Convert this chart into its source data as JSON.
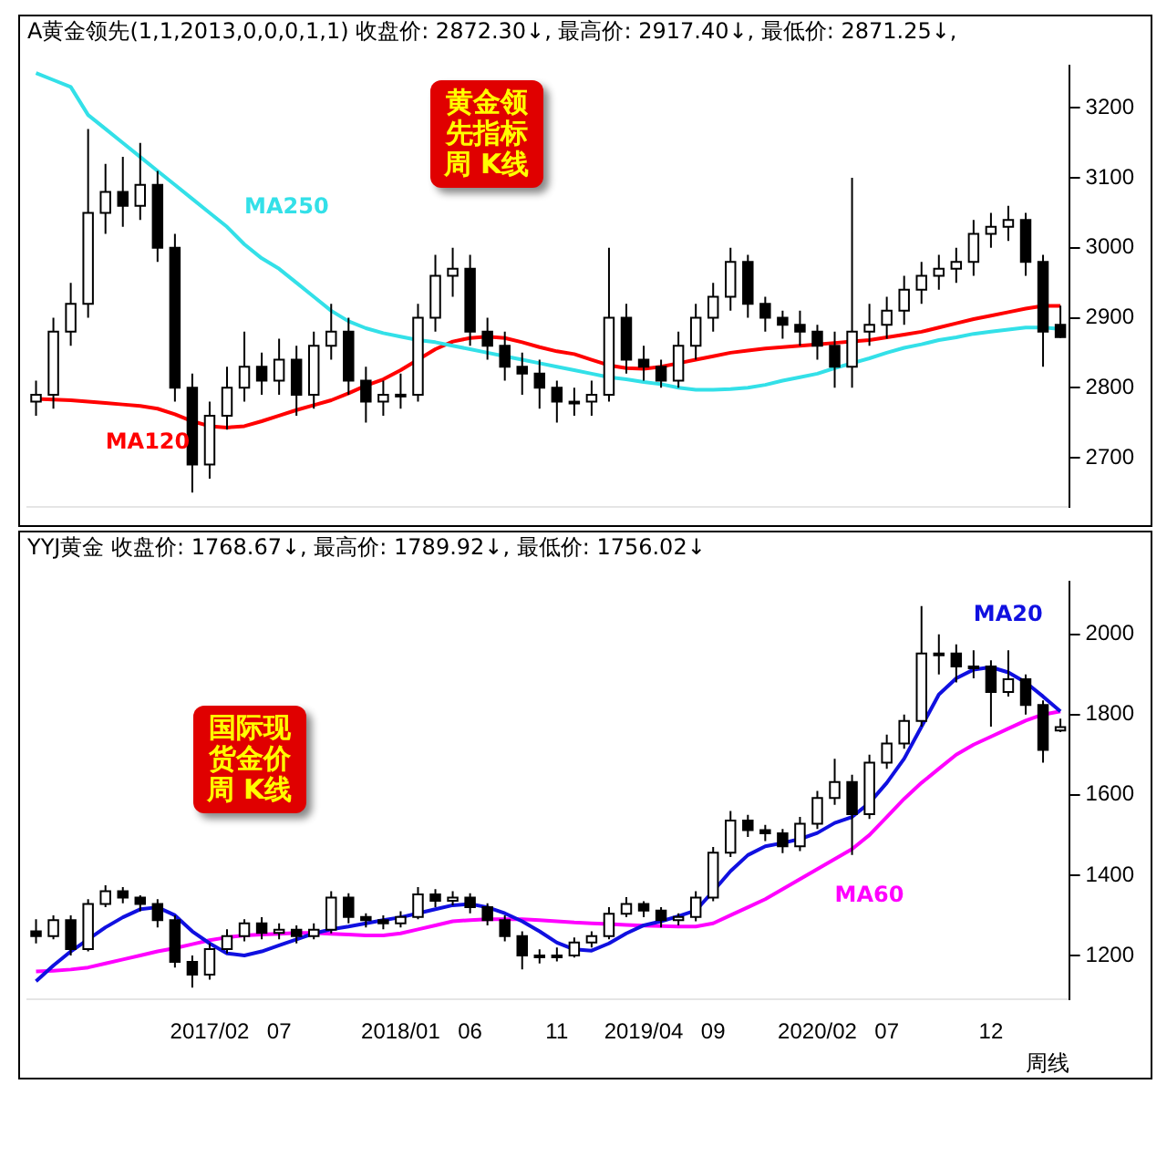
{
  "chart_data": [
    {
      "type": "candlestick",
      "title": "A黄金领先(1,1,2013,0,0,0,1,1) 收盘价: 2872.30↓, 最高价: 2917.40↓, 最低价: 2871.25↓,",
      "annotations": [
        "黄金领先指标周 K线"
      ],
      "categories": [
        null,
        null,
        null,
        null,
        null,
        null,
        null,
        null,
        null,
        null,
        "2017/02",
        null,
        null,
        null,
        "07",
        null,
        null,
        null,
        null,
        null,
        null,
        "2018/01",
        null,
        null,
        null,
        "06",
        null,
        null,
        null,
        null,
        "11",
        null,
        null,
        null,
        null,
        "2019/04",
        null,
        null,
        null,
        "09",
        null,
        null,
        null,
        null,
        null,
        "2020/02",
        null,
        null,
        null,
        "07",
        null,
        null,
        null,
        null,
        null,
        "12",
        null,
        null,
        null,
        null
      ],
      "ohlc": [
        [
          2780,
          2810,
          2760,
          2790
        ],
        [
          2790,
          2900,
          2770,
          2880
        ],
        [
          2880,
          2950,
          2860,
          2920
        ],
        [
          2920,
          3170,
          2900,
          3050
        ],
        [
          3050,
          3120,
          3020,
          3080
        ],
        [
          3080,
          3130,
          3030,
          3060
        ],
        [
          3060,
          3150,
          3040,
          3090
        ],
        [
          3090,
          3110,
          2980,
          3000
        ],
        [
          3000,
          3020,
          2780,
          2800
        ],
        [
          2800,
          2820,
          2650,
          2690
        ],
        [
          2690,
          2780,
          2670,
          2760
        ],
        [
          2760,
          2830,
          2740,
          2800
        ],
        [
          2800,
          2880,
          2780,
          2830
        ],
        [
          2830,
          2850,
          2790,
          2810
        ],
        [
          2810,
          2870,
          2790,
          2840
        ],
        [
          2840,
          2860,
          2760,
          2790
        ],
        [
          2790,
          2880,
          2770,
          2860
        ],
        [
          2860,
          2920,
          2840,
          2880
        ],
        [
          2880,
          2900,
          2790,
          2810
        ],
        [
          2810,
          2830,
          2750,
          2780
        ],
        [
          2780,
          2810,
          2760,
          2790
        ],
        [
          2790,
          2820,
          2770,
          2790
        ],
        [
          2790,
          2920,
          2780,
          2900
        ],
        [
          2900,
          2990,
          2880,
          2960
        ],
        [
          2960,
          3000,
          2930,
          2970
        ],
        [
          2970,
          2990,
          2860,
          2880
        ],
        [
          2880,
          2900,
          2840,
          2860
        ],
        [
          2860,
          2880,
          2810,
          2830
        ],
        [
          2830,
          2850,
          2790,
          2820
        ],
        [
          2820,
          2840,
          2770,
          2800
        ],
        [
          2800,
          2810,
          2750,
          2780
        ],
        [
          2780,
          2800,
          2760,
          2780
        ],
        [
          2780,
          2810,
          2760,
          2790
        ],
        [
          2790,
          3000,
          2780,
          2900
        ],
        [
          2900,
          2920,
          2820,
          2840
        ],
        [
          2840,
          2860,
          2810,
          2830
        ],
        [
          2830,
          2840,
          2800,
          2810
        ],
        [
          2810,
          2880,
          2800,
          2860
        ],
        [
          2860,
          2920,
          2840,
          2900
        ],
        [
          2900,
          2950,
          2880,
          2930
        ],
        [
          2930,
          3000,
          2910,
          2980
        ],
        [
          2980,
          2990,
          2900,
          2920
        ],
        [
          2920,
          2930,
          2880,
          2900
        ],
        [
          2900,
          2910,
          2870,
          2890
        ],
        [
          2890,
          2910,
          2860,
          2880
        ],
        [
          2880,
          2890,
          2840,
          2860
        ],
        [
          2860,
          2880,
          2800,
          2830
        ],
        [
          2830,
          3100,
          2800,
          2880
        ],
        [
          2880,
          2920,
          2860,
          2890
        ],
        [
          2890,
          2930,
          2870,
          2910
        ],
        [
          2910,
          2960,
          2890,
          2940
        ],
        [
          2940,
          2980,
          2920,
          2960
        ],
        [
          2960,
          2990,
          2940,
          2970
        ],
        [
          2970,
          3000,
          2950,
          2980
        ],
        [
          2980,
          3040,
          2960,
          3020
        ],
        [
          3020,
          3050,
          3000,
          3030
        ],
        [
          3030,
          3060,
          3010,
          3040
        ],
        [
          3040,
          3050,
          2960,
          2980
        ],
        [
          2980,
          2990,
          2830,
          2880
        ],
        [
          2890,
          2917.4,
          2871.25,
          2872.3
        ]
      ],
      "series": [
        {
          "name": "MA250",
          "type": "line",
          "color": "#33e0e8",
          "values": [
            3250,
            3240,
            3230,
            3190,
            3170,
            3150,
            3130,
            3110,
            3090,
            3070,
            3050,
            3030,
            3005,
            2985,
            2970,
            2950,
            2930,
            2910,
            2895,
            2885,
            2878,
            2873,
            2868,
            2865,
            2860,
            2855,
            2850,
            2845,
            2840,
            2835,
            2830,
            2825,
            2820,
            2815,
            2812,
            2808,
            2805,
            2800,
            2797,
            2797,
            2798,
            2800,
            2804,
            2810,
            2815,
            2820,
            2828,
            2835,
            2842,
            2850,
            2857,
            2862,
            2868,
            2872,
            2877,
            2880,
            2883,
            2886,
            2886,
            2884
          ]
        },
        {
          "name": "MA120",
          "type": "line",
          "color": "#ff0000",
          "values": [
            2784,
            2783,
            2782,
            2780,
            2778,
            2776,
            2774,
            2770,
            2762,
            2752,
            2745,
            2743,
            2745,
            2752,
            2760,
            2768,
            2775,
            2782,
            2792,
            2803,
            2812,
            2825,
            2840,
            2855,
            2866,
            2871,
            2873,
            2871,
            2865,
            2858,
            2852,
            2848,
            2840,
            2832,
            2828,
            2827,
            2830,
            2835,
            2840,
            2845,
            2850,
            2853,
            2856,
            2858,
            2860,
            2862,
            2864,
            2866,
            2868,
            2872,
            2876,
            2880,
            2886,
            2892,
            2898,
            2903,
            2908,
            2913,
            2917,
            2917
          ]
        }
      ],
      "ylim": [
        2630,
        3260
      ],
      "yticks": [
        2700,
        2800,
        2900,
        3000,
        3100,
        3200
      ],
      "tick_labels": "y",
      "legend": false,
      "grid": false
    },
    {
      "type": "candlestick",
      "title": "YYJ黄金 收盘价: 1768.67↓, 最高价: 1789.92↓, 最低价: 1756.02↓",
      "annotations": [
        "国际现货金价周 K线"
      ],
      "xlabel": "周线",
      "categories": [
        null,
        null,
        null,
        null,
        null,
        null,
        null,
        null,
        null,
        null,
        "2017/02",
        null,
        null,
        null,
        "07",
        null,
        null,
        null,
        null,
        null,
        null,
        "2018/01",
        null,
        null,
        null,
        "06",
        null,
        null,
        null,
        null,
        "11",
        null,
        null,
        null,
        null,
        "2019/04",
        null,
        null,
        null,
        "09",
        null,
        null,
        null,
        null,
        null,
        "2020/02",
        null,
        null,
        null,
        "07",
        null,
        null,
        null,
        null,
        null,
        "12",
        null,
        null,
        null,
        null
      ],
      "ohlc": [
        [
          1260,
          1290,
          1230,
          1248
        ],
        [
          1248,
          1300,
          1240,
          1288
        ],
        [
          1288,
          1300,
          1200,
          1216
        ],
        [
          1216,
          1340,
          1210,
          1328
        ],
        [
          1328,
          1375,
          1320,
          1360
        ],
        [
          1360,
          1370,
          1330,
          1344
        ],
        [
          1344,
          1350,
          1310,
          1328
        ],
        [
          1328,
          1340,
          1270,
          1288
        ],
        [
          1288,
          1300,
          1170,
          1184
        ],
        [
          1184,
          1200,
          1120,
          1152
        ],
        [
          1152,
          1230,
          1140,
          1216
        ],
        [
          1216,
          1265,
          1205,
          1248
        ],
        [
          1248,
          1290,
          1235,
          1280
        ],
        [
          1280,
          1295,
          1240,
          1256
        ],
        [
          1256,
          1280,
          1240,
          1264
        ],
        [
          1264,
          1275,
          1230,
          1248
        ],
        [
          1248,
          1280,
          1240,
          1264
        ],
        [
          1264,
          1360,
          1255,
          1344
        ],
        [
          1344,
          1355,
          1280,
          1296
        ],
        [
          1296,
          1305,
          1270,
          1288
        ],
        [
          1288,
          1300,
          1265,
          1280
        ],
        [
          1280,
          1310,
          1270,
          1296
        ],
        [
          1296,
          1370,
          1290,
          1352
        ],
        [
          1352,
          1365,
          1320,
          1336
        ],
        [
          1336,
          1360,
          1325,
          1344
        ],
        [
          1344,
          1355,
          1305,
          1320
        ],
        [
          1320,
          1330,
          1275,
          1288
        ],
        [
          1288,
          1300,
          1235,
          1248
        ],
        [
          1248,
          1260,
          1165,
          1200
        ],
        [
          1200,
          1215,
          1180,
          1200
        ],
        [
          1200,
          1220,
          1185,
          1200
        ],
        [
          1200,
          1245,
          1195,
          1232
        ],
        [
          1232,
          1260,
          1220,
          1248
        ],
        [
          1248,
          1320,
          1240,
          1304
        ],
        [
          1304,
          1345,
          1295,
          1328
        ],
        [
          1328,
          1335,
          1295,
          1312
        ],
        [
          1312,
          1320,
          1270,
          1288
        ],
        [
          1288,
          1305,
          1275,
          1296
        ],
        [
          1296,
          1360,
          1285,
          1344
        ],
        [
          1344,
          1470,
          1335,
          1456
        ],
        [
          1456,
          1560,
          1445,
          1536
        ],
        [
          1536,
          1550,
          1495,
          1512
        ],
        [
          1512,
          1525,
          1485,
          1504
        ],
        [
          1504,
          1515,
          1455,
          1472
        ],
        [
          1472,
          1545,
          1460,
          1528
        ],
        [
          1528,
          1610,
          1515,
          1592
        ],
        [
          1592,
          1690,
          1575,
          1632
        ],
        [
          1632,
          1650,
          1450,
          1552
        ],
        [
          1552,
          1700,
          1540,
          1680
        ],
        [
          1680,
          1750,
          1665,
          1728
        ],
        [
          1728,
          1800,
          1715,
          1784
        ],
        [
          1784,
          2070,
          1770,
          1952
        ],
        [
          1952,
          2000,
          1900,
          1952
        ],
        [
          1952,
          1975,
          1880,
          1920
        ],
        [
          1920,
          1960,
          1890,
          1920
        ],
        [
          1920,
          1935,
          1770,
          1856
        ],
        [
          1856,
          1960,
          1845,
          1888
        ],
        [
          1888,
          1900,
          1800,
          1824
        ],
        [
          1824,
          1835,
          1680,
          1712
        ],
        [
          1760,
          1789.92,
          1756.02,
          1768.67
        ]
      ],
      "series": [
        {
          "name": "MA20",
          "type": "line",
          "color": "#1010e0",
          "values": [
            1136,
            1175,
            1210,
            1240,
            1270,
            1295,
            1315,
            1320,
            1300,
            1260,
            1230,
            1205,
            1200,
            1210,
            1225,
            1240,
            1255,
            1265,
            1272,
            1280,
            1288,
            1295,
            1305,
            1315,
            1325,
            1328,
            1320,
            1305,
            1285,
            1260,
            1232,
            1215,
            1212,
            1230,
            1255,
            1275,
            1285,
            1298,
            1312,
            1360,
            1410,
            1450,
            1472,
            1480,
            1490,
            1505,
            1530,
            1545,
            1580,
            1630,
            1690,
            1770,
            1850,
            1890,
            1912,
            1918,
            1905,
            1880,
            1845,
            1808
          ]
        },
        {
          "name": "MA60",
          "type": "line",
          "color": "#ff00ff",
          "values": [
            1160,
            1162,
            1165,
            1170,
            1180,
            1190,
            1200,
            1210,
            1218,
            1228,
            1238,
            1245,
            1250,
            1252,
            1254,
            1256,
            1256,
            1254,
            1252,
            1250,
            1250,
            1255,
            1265,
            1275,
            1285,
            1288,
            1290,
            1290,
            1290,
            1288,
            1285,
            1282,
            1280,
            1278,
            1276,
            1274,
            1273,
            1272,
            1272,
            1280,
            1300,
            1320,
            1340,
            1365,
            1390,
            1415,
            1440,
            1465,
            1500,
            1545,
            1590,
            1630,
            1665,
            1700,
            1725,
            1745,
            1765,
            1785,
            1800,
            1808
          ]
        }
      ],
      "ylim": [
        1090,
        2130
      ],
      "yticks": [
        1200,
        1400,
        1600,
        1800,
        2000
      ],
      "legend": false,
      "grid": false
    }
  ]
}
